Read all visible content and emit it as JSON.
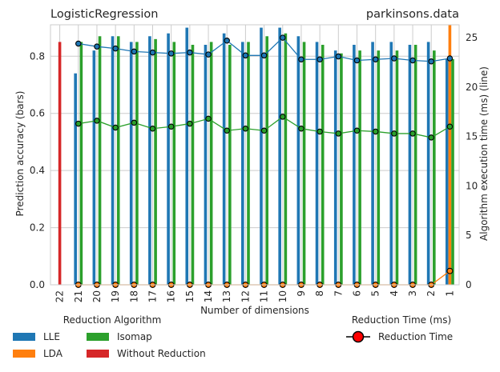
{
  "chart_data": {
    "type": "bar",
    "title_left": "LogisticRegression",
    "title_right": "parkinsons.data",
    "xlabel": "Number of dimensions",
    "ylabel_left": "Prediction accuracy (bars)",
    "ylabel_right": "Algorithm execution time (ms) (line)",
    "categories": [
      "22",
      "21",
      "20",
      "19",
      "18",
      "17",
      "16",
      "15",
      "14",
      "13",
      "12",
      "11",
      "10",
      "9",
      "8",
      "7",
      "6",
      "5",
      "4",
      "3",
      "2",
      "1"
    ],
    "ylim_left": [
      0,
      0.91
    ],
    "yticks_left": [
      "0.0",
      "0.2",
      "0.4",
      "0.6",
      "0.8"
    ],
    "ylim_right": [
      0,
      26.3
    ],
    "yticks_right": [
      "0",
      "5",
      "10",
      "15",
      "20",
      "25"
    ],
    "grid": true,
    "legend_left_title": "Reduction Algorithm",
    "legend_right_title": "Reduction Time (ms)",
    "legend_right_entry": "Reduction Time",
    "colors": {
      "LLE": "#1f77b4",
      "LDA": "#ff7f0e",
      "Isomap": "#2ca02c",
      "Without Reduction": "#d62728",
      "marker": "#ff0000"
    },
    "series": [
      {
        "name": "LLE",
        "kind": "bar",
        "values": [
          null,
          0.74,
          0.82,
          0.87,
          0.85,
          0.87,
          0.88,
          0.9,
          0.84,
          0.88,
          0.85,
          0.9,
          0.9,
          0.87,
          0.85,
          0.82,
          0.84,
          0.85,
          0.85,
          0.84,
          0.85,
          0.79
        ]
      },
      {
        "name": "LDA",
        "kind": "bar",
        "values": [
          null,
          0,
          0,
          0,
          0,
          0,
          0,
          0,
          0,
          0,
          0,
          0,
          0,
          0,
          0,
          0,
          0,
          0,
          0,
          0,
          0,
          0.95
        ]
      },
      {
        "name": "Isomap",
        "kind": "bar",
        "values": [
          null,
          0.85,
          0.87,
          0.87,
          0.85,
          0.86,
          0.85,
          0.84,
          0.85,
          0.84,
          0.85,
          0.87,
          0.88,
          0.85,
          0.84,
          0.81,
          0.82,
          0.82,
          0.82,
          0.84,
          0.82,
          0.79
        ]
      },
      {
        "name": "Without Reduction",
        "kind": "bar",
        "values": [
          0.85,
          null,
          null,
          null,
          null,
          null,
          null,
          null,
          null,
          null,
          null,
          null,
          null,
          null,
          null,
          null,
          null,
          null,
          null,
          null,
          null,
          null
        ]
      },
      {
        "name": "LLE",
        "kind": "line",
        "values": [
          null,
          24.4,
          24.1,
          23.9,
          23.6,
          23.5,
          23.4,
          23.5,
          23.3,
          24.7,
          23.2,
          23.2,
          25.0,
          22.8,
          22.8,
          23.1,
          22.7,
          22.8,
          22.9,
          22.7,
          22.6,
          22.9
        ]
      },
      {
        "name": "LDA",
        "kind": "line",
        "values": [
          null,
          0,
          0,
          0,
          0,
          0,
          0,
          0,
          0,
          0,
          0,
          0,
          0,
          0,
          0,
          0,
          0,
          0,
          0,
          0,
          0,
          1.4
        ]
      },
      {
        "name": "Isomap",
        "kind": "line",
        "values": [
          null,
          16.3,
          16.6,
          15.9,
          16.4,
          15.8,
          16.0,
          16.3,
          16.8,
          15.6,
          15.8,
          15.6,
          17.0,
          15.8,
          15.5,
          15.3,
          15.6,
          15.5,
          15.3,
          15.3,
          14.9,
          16.0
        ]
      }
    ]
  }
}
